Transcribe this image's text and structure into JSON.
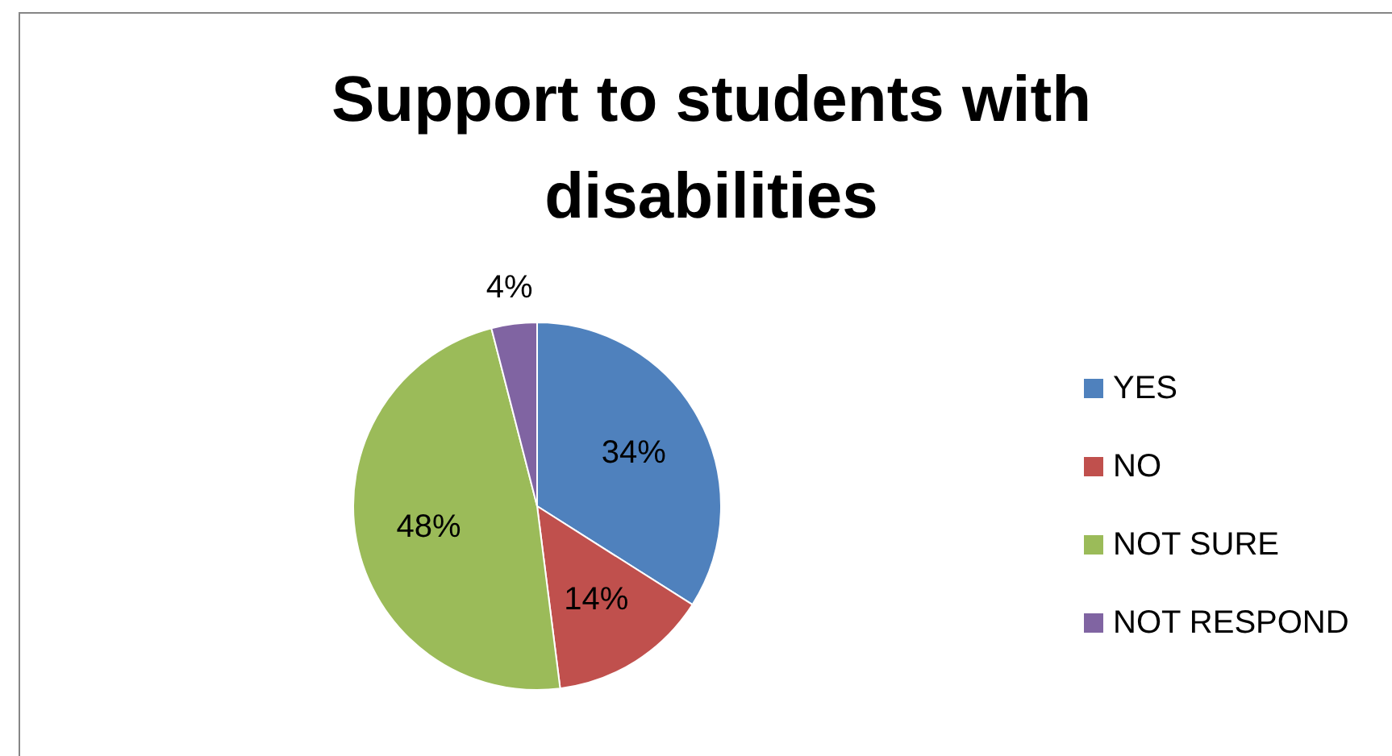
{
  "chart_data": {
    "type": "pie",
    "title": "Support to students with disabilities",
    "categories": [
      "YES",
      "NO",
      "NOT SURE",
      "NOT RESPOND"
    ],
    "values": [
      34,
      14,
      48,
      4
    ],
    "colors": [
      "#4f81bd",
      "#c0504d",
      "#9bbb59",
      "#8064a2"
    ],
    "value_labels": [
      "34%",
      "14%",
      "48%",
      "4%"
    ],
    "legend": "right"
  }
}
